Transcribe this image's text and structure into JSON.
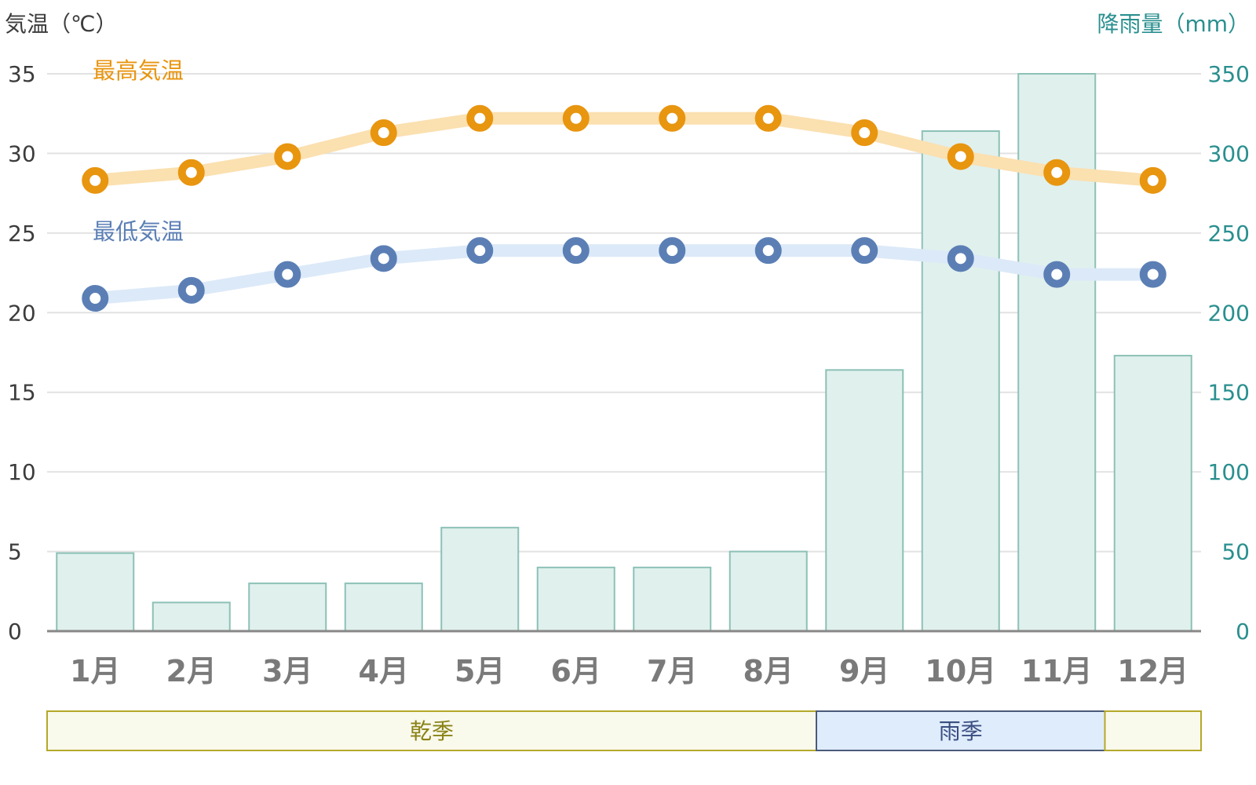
{
  "chart_data": {
    "type": "bar+line",
    "categories": [
      "1月",
      "2月",
      "3月",
      "4月",
      "5月",
      "6月",
      "7月",
      "8月",
      "9月",
      "10月",
      "11月",
      "12月"
    ],
    "y_left": {
      "label": "気温（℃）",
      "ticks": [
        "0",
        "5",
        "10",
        "15",
        "20",
        "25",
        "30",
        "35"
      ],
      "range": [
        0,
        35
      ]
    },
    "y_right": {
      "label": "降雨量（mm）",
      "ticks": [
        "0",
        "50",
        "100",
        "150",
        "200",
        "250",
        "300",
        "350"
      ],
      "range": [
        0,
        350
      ]
    },
    "series": [
      {
        "name": "最高気温",
        "kind": "line",
        "axis": "left",
        "color": "#e8950f",
        "band_color": "#fbe0b0",
        "values": [
          28.3,
          28.8,
          29.8,
          31.3,
          32.2,
          32.2,
          32.2,
          32.2,
          31.3,
          29.8,
          28.8,
          28.3
        ]
      },
      {
        "name": "最低気温",
        "kind": "line",
        "axis": "left",
        "color": "#5b7fb5",
        "band_color": "#dce9f8",
        "values": [
          20.9,
          21.4,
          22.4,
          23.4,
          23.9,
          23.9,
          23.9,
          23.9,
          23.9,
          23.4,
          22.4,
          22.4
        ]
      },
      {
        "kind": "bar",
        "axis": "right",
        "fill": "#e0f0ed",
        "stroke": "#8cc1b6",
        "values": [
          49,
          18,
          30,
          30,
          65,
          40,
          40,
          50,
          164,
          314,
          350,
          173
        ]
      }
    ],
    "seasons": [
      {
        "label": "乾季",
        "fill": "#f9f9ec",
        "stroke": "#b5a82a",
        "text_color": "#8a8215",
        "from_month": 1,
        "to_month": 9
      },
      {
        "label": "雨季",
        "fill": "#dfecfb",
        "stroke": "#4a5a7a",
        "text_color": "#3b4e82",
        "from_month": 9,
        "to_month": 12
      },
      {
        "label": "",
        "fill": "#f9f9ec",
        "stroke": "#b5a82a",
        "text_color": "#8a8215",
        "from_month": 12,
        "to_month": 13
      }
    ],
    "grid": true,
    "colors": {
      "left_axis_text": "#3c3c3c",
      "right_axis_text": "#2a8f8f",
      "grid": "#e2e2e2",
      "axis_line": "#888888"
    }
  }
}
